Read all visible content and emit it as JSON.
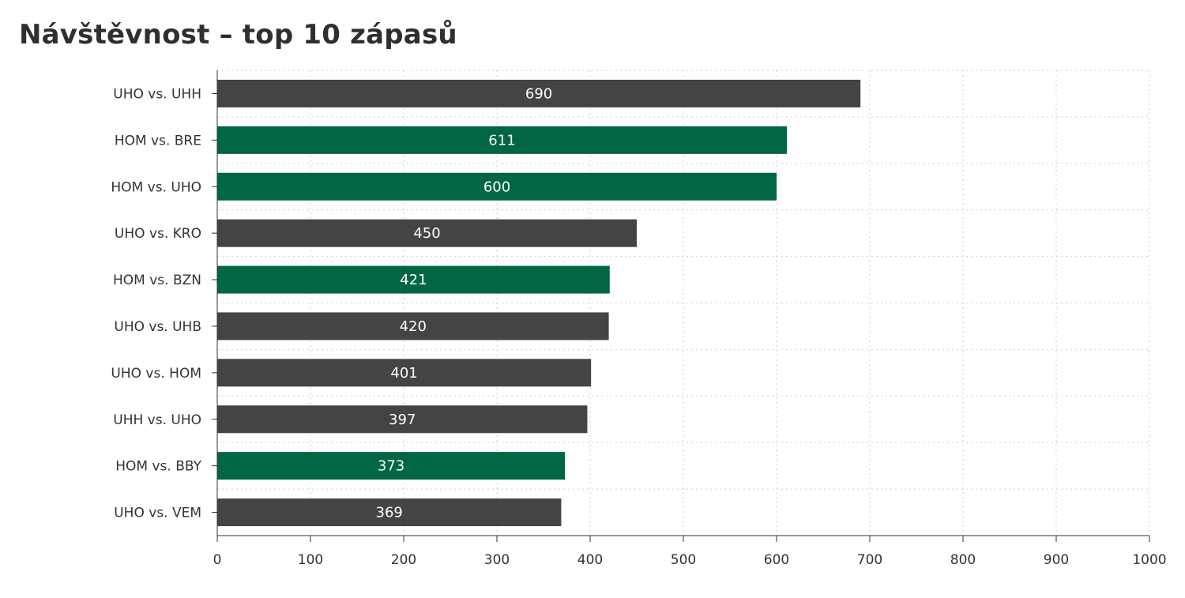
{
  "chart_data": {
    "type": "bar",
    "orientation": "horizontal",
    "title": "Návštěvnost – top 10 zápasů",
    "xlabel": "",
    "ylabel": "",
    "categories": [
      "UHO vs. UHH",
      "HOM vs. BRE",
      "HOM vs. UHO",
      "UHO vs. KRO",
      "HOM vs. BZN",
      "UHO vs. UHB",
      "UHO vs. HOM",
      "UHH vs. UHO",
      "HOM vs. BBY",
      "UHO vs. VEM"
    ],
    "values": [
      690,
      611,
      600,
      450,
      421,
      420,
      401,
      397,
      373,
      369
    ],
    "bar_colors": [
      "#444444",
      "#006644",
      "#006644",
      "#444444",
      "#006644",
      "#444444",
      "#444444",
      "#444444",
      "#006644",
      "#444444"
    ],
    "xlim": [
      0,
      1000
    ],
    "xticks": [
      0,
      100,
      200,
      300,
      400,
      500,
      600,
      700,
      800,
      900,
      1000
    ],
    "grid": true,
    "data_labels": true,
    "legend": "none"
  }
}
